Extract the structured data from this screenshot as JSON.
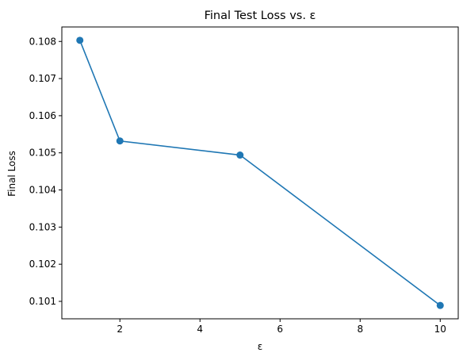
{
  "chart_data": {
    "type": "line",
    "title": "Final Test Loss vs. ε",
    "xlabel": "ε",
    "ylabel": "Final Loss",
    "x": [
      1,
      2,
      5,
      10
    ],
    "series": [
      {
        "values": [
          0.10803,
          0.10532,
          0.10494,
          0.10089
        ]
      }
    ],
    "xlim": [
      0.55,
      10.45
    ],
    "ylim": [
      0.10053,
      0.10839
    ],
    "xticks": [
      2,
      4,
      6,
      8,
      10
    ],
    "xtick_labels": [
      "2",
      "4",
      "6",
      "8",
      "10"
    ],
    "yticks": [
      0.101,
      0.102,
      0.103,
      0.104,
      0.105,
      0.106,
      0.107,
      0.108
    ],
    "ytick_labels": [
      "0.101",
      "0.102",
      "0.103",
      "0.104",
      "0.105",
      "0.106",
      "0.107",
      "0.108"
    ],
    "grid": false,
    "marker": "circle",
    "colors": {
      "line": "#1f77b4",
      "axes": "#000000"
    }
  }
}
